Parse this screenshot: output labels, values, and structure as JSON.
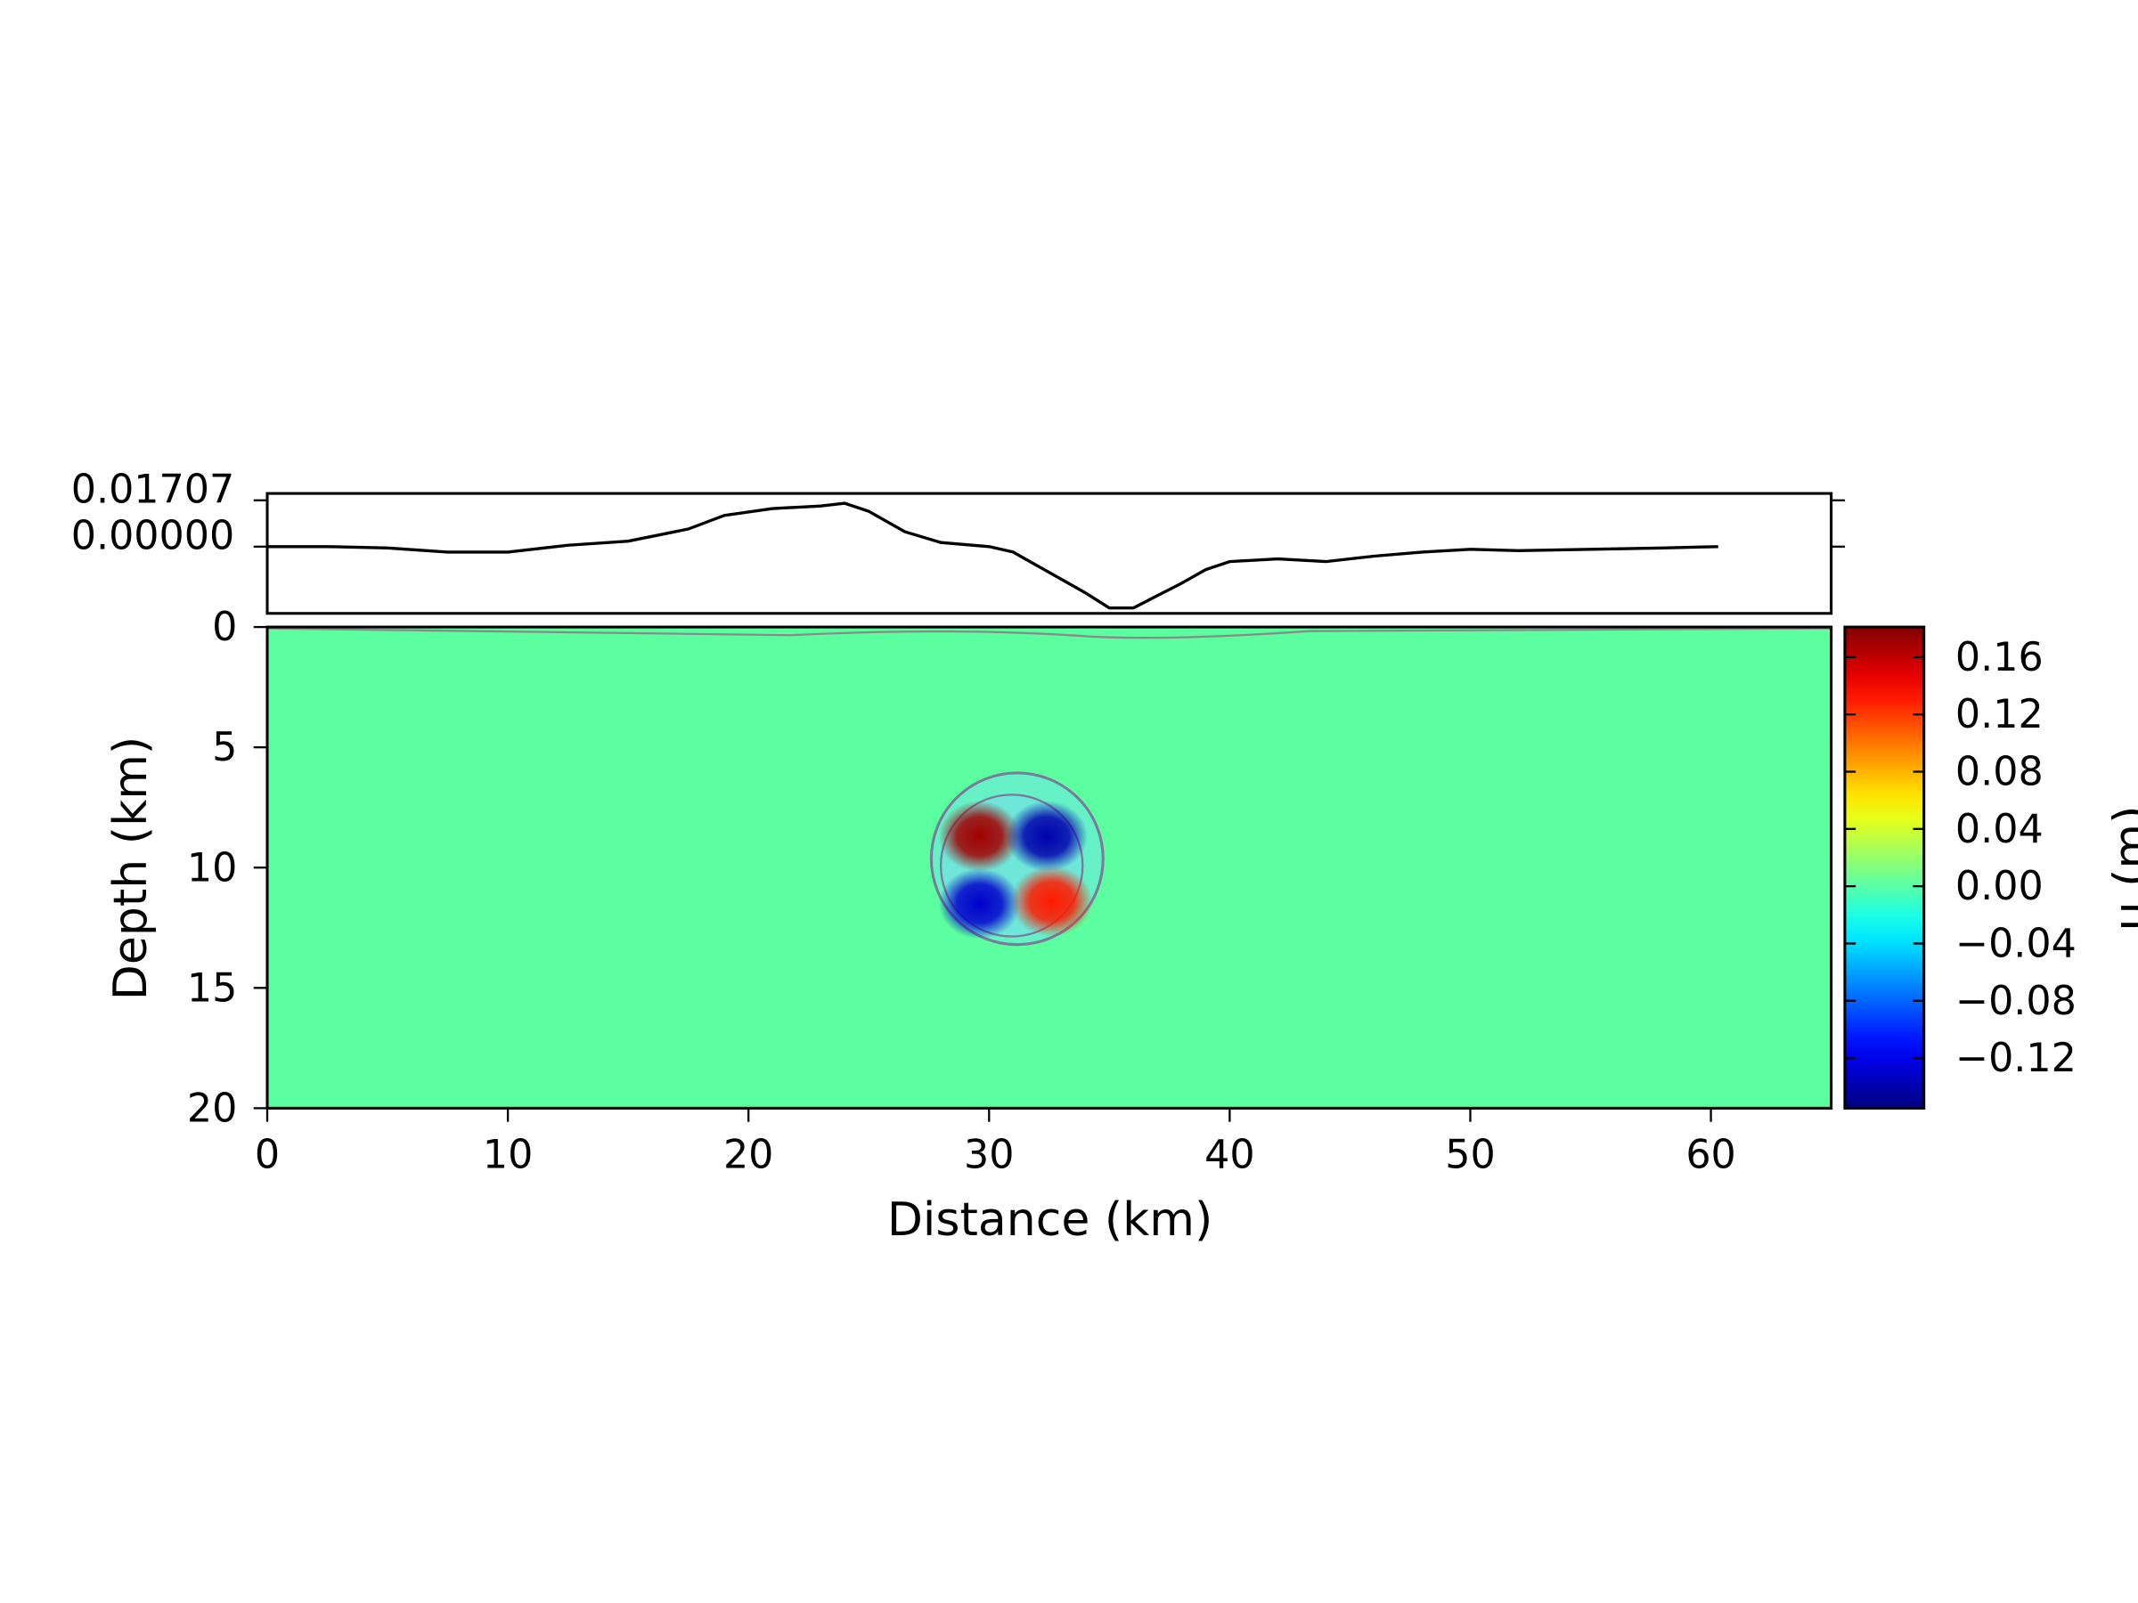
{
  "chart_data": [
    {
      "type": "line",
      "x": [
        0,
        2.5,
        5,
        7.5,
        10,
        12.5,
        15,
        17.5,
        19,
        21,
        23,
        24,
        25,
        26.5,
        28,
        30,
        31,
        32,
        33,
        34,
        35,
        36,
        37,
        38,
        39,
        40,
        42,
        44,
        46,
        48,
        50,
        52,
        55,
        58,
        60.3
      ],
      "values": [
        0,
        0,
        -0.0005,
        -0.002,
        -0.002,
        0.0005,
        0.002,
        0.0065,
        0.0115,
        0.014,
        0.015,
        0.016,
        0.013,
        0.0055,
        0.0015,
        0,
        -0.002,
        -0.007,
        -0.012,
        -0.017,
        -0.0226,
        -0.0226,
        -0.018,
        -0.0135,
        -0.0085,
        -0.0055,
        -0.0045,
        -0.0055,
        -0.0035,
        -0.002,
        -0.001,
        -0.0015,
        -0.001,
        -0.0005,
        0
      ],
      "color": "#000000",
      "xlim": [
        0,
        65
      ],
      "ylim": [
        -0.0246,
        0.0196
      ],
      "yticks": [
        0.01707,
        {
          "value": 0,
          "label": "0.00000"
        }
      ]
    },
    {
      "type": "heatmap",
      "xlabel": "Distance (km)",
      "ylabel": "Depth (km)",
      "xlim": [
        0,
        65
      ],
      "ylim": [
        20,
        0
      ],
      "xticks": [
        0,
        10,
        20,
        30,
        40,
        50,
        60
      ],
      "yticks": [
        0,
        5,
        10,
        15,
        20
      ],
      "points": {
        "x": [
          29.6,
          32.4,
          29.6,
          32.6
        ],
        "y": [
          8.7,
          8.7,
          11.5,
          11.4
        ],
        "values": [
          0.17,
          -0.14,
          -0.13,
          0.13
        ]
      },
      "colormap": "jet",
      "clim": [
        -0.155,
        0.181
      ],
      "cticks": [
        0.16,
        0.12,
        0.08,
        0.04,
        {
          "value": 0,
          "label": "0.00"
        },
        {
          "value": -0.04,
          "label": "−0.04"
        },
        {
          "value": -0.08,
          "label": "−0.08"
        },
        {
          "value": -0.12,
          "label": "−0.12"
        }
      ],
      "colorbar_label": "u (m)"
    }
  ]
}
